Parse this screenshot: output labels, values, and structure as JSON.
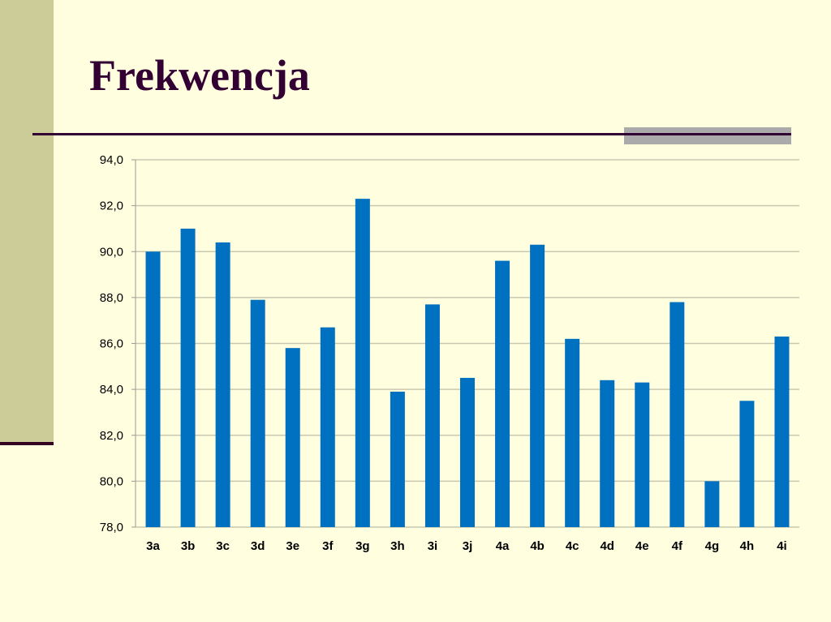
{
  "title": "Frekwencja",
  "colors": {
    "bar": "#0070C0",
    "background": "#FFFFDF",
    "sidebar": "#CCCC99",
    "accent": "#330033"
  },
  "chart_data": {
    "type": "bar",
    "title": "",
    "xlabel": "",
    "ylabel": "",
    "ylim": [
      78,
      94
    ],
    "grid": true,
    "yticks": [
      "78,0",
      "80,0",
      "82,0",
      "84,0",
      "86,0",
      "88,0",
      "90,0",
      "92,0",
      "94,0"
    ],
    "categories": [
      "3a",
      "3b",
      "3c",
      "3d",
      "3e",
      "3f",
      "3g",
      "3h",
      "3i",
      "3j",
      "4a",
      "4b",
      "4c",
      "4d",
      "4e",
      "4f",
      "4g",
      "4h",
      "4i"
    ],
    "values": [
      90.0,
      91.0,
      90.4,
      87.9,
      85.8,
      86.7,
      92.3,
      83.9,
      87.7,
      84.5,
      89.6,
      90.3,
      86.2,
      84.4,
      84.3,
      87.8,
      80.0,
      83.5,
      86.3
    ]
  }
}
